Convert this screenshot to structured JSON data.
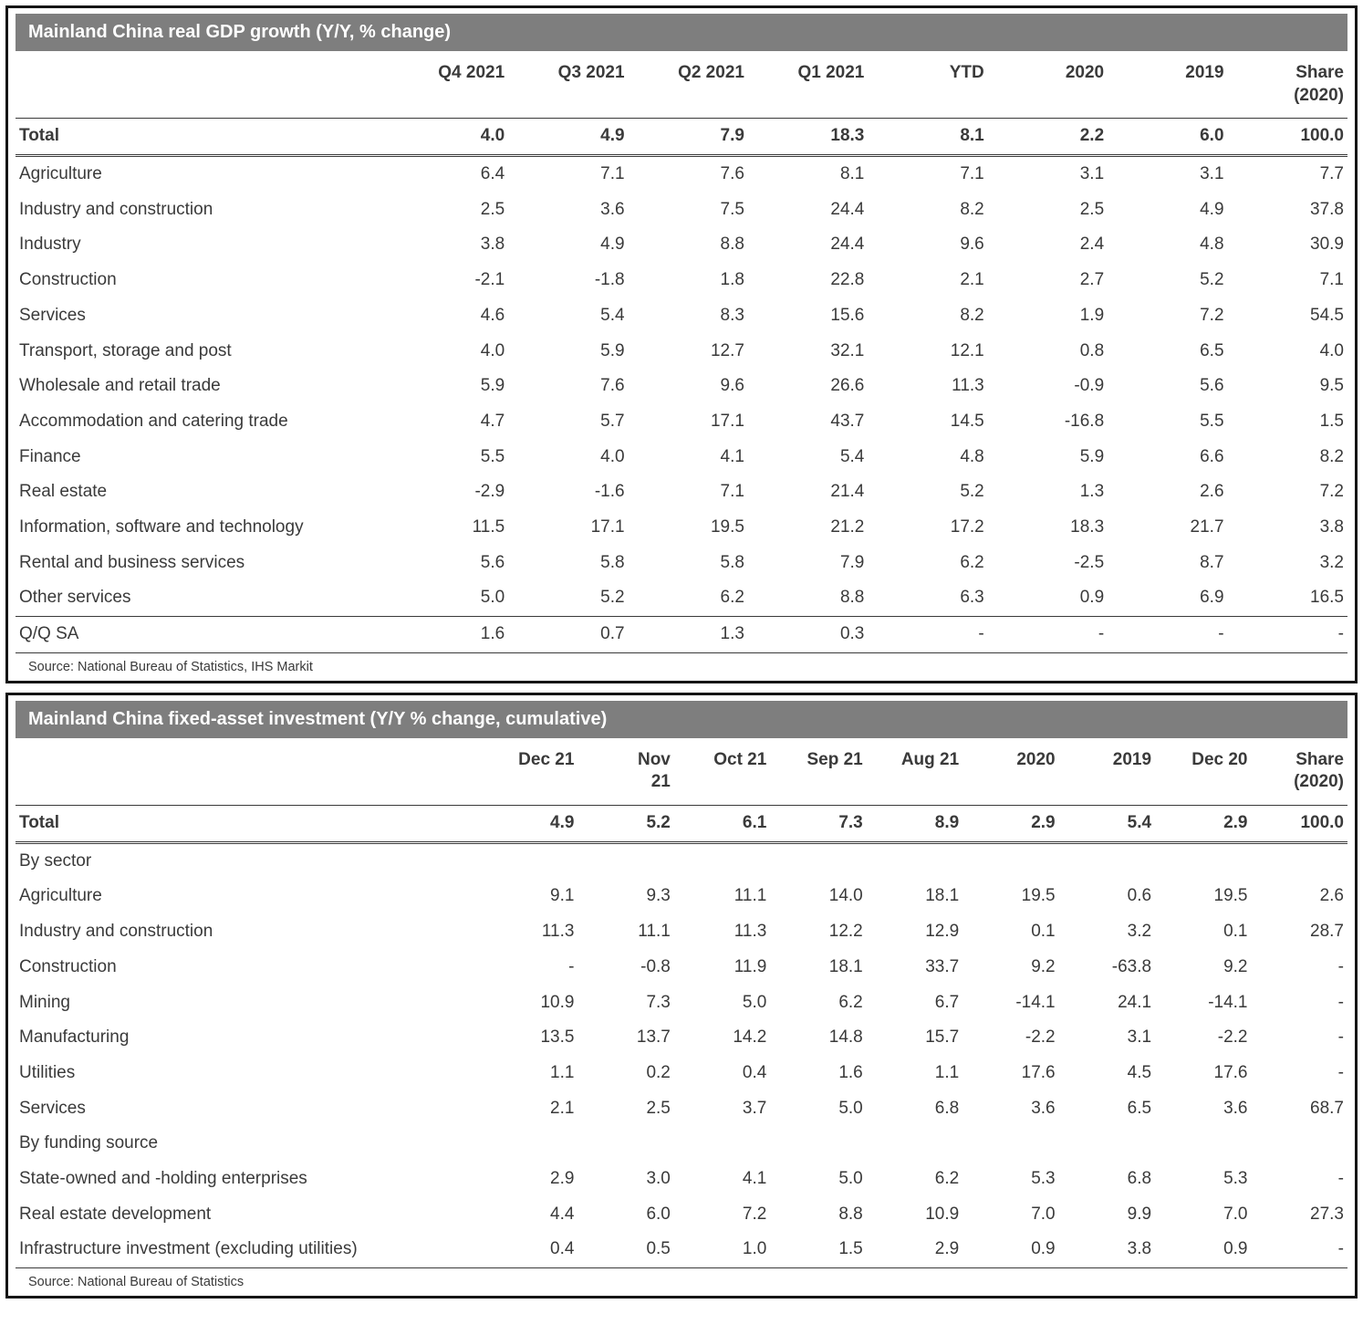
{
  "colors": {
    "title_bar": "#7e7e7e",
    "title_text": "#ffffff",
    "body_text": "#3a3a3a",
    "rule": "#3a3a3a"
  },
  "chart_data": [
    {
      "type": "table",
      "title": "Mainland China real GDP growth (Y/Y, % change)",
      "source": "Source: National Bureau of Statistics, IHS Markit",
      "dash_align": "left",
      "columns": [
        "Q4 2021",
        "Q3 2021",
        "Q2 2021",
        "Q1 2021",
        "YTD",
        "2020",
        "2019",
        "Share\n(2020)"
      ],
      "rows": [
        {
          "label": "Total",
          "indent": 0,
          "total": true,
          "values": [
            "4.0",
            "4.9",
            "7.9",
            "18.3",
            "8.1",
            "2.2",
            "6.0",
            "100.0"
          ]
        },
        {
          "label": "Agriculture",
          "indent": 1,
          "values": [
            "6.4",
            "7.1",
            "7.6",
            "8.1",
            "7.1",
            "3.1",
            "3.1",
            "7.7"
          ]
        },
        {
          "label": "Industry and construction",
          "indent": 1,
          "values": [
            "2.5",
            "3.6",
            "7.5",
            "24.4",
            "8.2",
            "2.5",
            "4.9",
            "37.8"
          ]
        },
        {
          "label": "Industry",
          "indent": 2,
          "values": [
            "3.8",
            "4.9",
            "8.8",
            "24.4",
            "9.6",
            "2.4",
            "4.8",
            "30.9"
          ]
        },
        {
          "label": "Construction",
          "indent": 2,
          "values": [
            "-2.1",
            "-1.8",
            "1.8",
            "22.8",
            "2.1",
            "2.7",
            "5.2",
            "7.1"
          ]
        },
        {
          "label": "Services",
          "indent": 1,
          "values": [
            "4.6",
            "5.4",
            "8.3",
            "15.6",
            "8.2",
            "1.9",
            "7.2",
            "54.5"
          ]
        },
        {
          "label": "Transport, storage and post",
          "indent": 2,
          "values": [
            "4.0",
            "5.9",
            "12.7",
            "32.1",
            "12.1",
            "0.8",
            "6.5",
            "4.0"
          ]
        },
        {
          "label": "Wholesale and retail trade",
          "indent": 2,
          "values": [
            "5.9",
            "7.6",
            "9.6",
            "26.6",
            "11.3",
            "-0.9",
            "5.6",
            "9.5"
          ]
        },
        {
          "label": "Accommodation and catering trade",
          "indent": 2,
          "values": [
            "4.7",
            "5.7",
            "17.1",
            "43.7",
            "14.5",
            "-16.8",
            "5.5",
            "1.5"
          ]
        },
        {
          "label": "Finance",
          "indent": 2,
          "values": [
            "5.5",
            "4.0",
            "4.1",
            "5.4",
            "4.8",
            "5.9",
            "6.6",
            "8.2"
          ]
        },
        {
          "label": "Real estate",
          "indent": 2,
          "values": [
            "-2.9",
            "-1.6",
            "7.1",
            "21.4",
            "5.2",
            "1.3",
            "2.6",
            "7.2"
          ]
        },
        {
          "label": "Information, software and technology",
          "indent": 2,
          "values": [
            "11.5",
            "17.1",
            "19.5",
            "21.2",
            "17.2",
            "18.3",
            "21.7",
            "3.8"
          ]
        },
        {
          "label": "Rental and business services",
          "indent": 2,
          "values": [
            "5.6",
            "5.8",
            "5.8",
            "7.9",
            "6.2",
            "-2.5",
            "8.7",
            "3.2"
          ]
        },
        {
          "label": "Other services",
          "indent": 2,
          "values": [
            "5.0",
            "5.2",
            "6.2",
            "8.8",
            "6.3",
            "0.9",
            "6.9",
            "16.5"
          ]
        },
        {
          "label": "Q/Q SA",
          "indent": 0,
          "rule_above": true,
          "values": [
            "1.6",
            "0.7",
            "1.3",
            "0.3",
            "-",
            "-",
            "-",
            "-"
          ]
        }
      ]
    },
    {
      "type": "table",
      "title": "Mainland China fixed-asset investment (Y/Y % change, cumulative)",
      "source": "Source: National Bureau of Statistics",
      "dash_align": "right",
      "columns": [
        "Dec 21",
        "Nov\n21",
        "Oct 21",
        "Sep 21",
        "Aug 21",
        "2020",
        "2019",
        "Dec 20",
        "Share\n(2020)"
      ],
      "rows": [
        {
          "label": "Total",
          "indent": 0,
          "total": true,
          "values": [
            "4.9",
            "5.2",
            "6.1",
            "7.3",
            "8.9",
            "2.9",
            "5.4",
            "2.9",
            "100.0"
          ]
        },
        {
          "label": "By sector",
          "indent": 0,
          "section": true
        },
        {
          "label": "Agriculture",
          "indent": 1,
          "values": [
            "9.1",
            "9.3",
            "11.1",
            "14.0",
            "18.1",
            "19.5",
            "0.6",
            "19.5",
            "2.6"
          ]
        },
        {
          "label": "Industry and construction",
          "indent": 1,
          "values": [
            "11.3",
            "11.1",
            "11.3",
            "12.2",
            "12.9",
            "0.1",
            "3.2",
            "0.1",
            "28.7"
          ]
        },
        {
          "label": "Construction",
          "indent": 1,
          "values": [
            "-",
            "-0.8",
            "11.9",
            "18.1",
            "33.7",
            "9.2",
            "-63.8",
            "9.2",
            "-"
          ]
        },
        {
          "label": "Mining",
          "indent": 1,
          "values": [
            "10.9",
            "7.3",
            "5.0",
            "6.2",
            "6.7",
            "-14.1",
            "24.1",
            "-14.1",
            "-"
          ]
        },
        {
          "label": "Manufacturing",
          "indent": 1,
          "values": [
            "13.5",
            "13.7",
            "14.2",
            "14.8",
            "15.7",
            "-2.2",
            "3.1",
            "-2.2",
            "-"
          ]
        },
        {
          "label": "Utilities",
          "indent": 1,
          "values": [
            "1.1",
            "0.2",
            "0.4",
            "1.6",
            "1.1",
            "17.6",
            "4.5",
            "17.6",
            "-"
          ]
        },
        {
          "label": "Services",
          "indent": 1,
          "values": [
            "2.1",
            "2.5",
            "3.7",
            "5.0",
            "6.8",
            "3.6",
            "6.5",
            "3.6",
            "68.7"
          ]
        },
        {
          "label": "By funding source",
          "indent": 0,
          "section": true
        },
        {
          "label": "State-owned and -holding enterprises",
          "indent": 1,
          "values": [
            "2.9",
            "3.0",
            "4.1",
            "5.0",
            "6.2",
            "5.3",
            "6.8",
            "5.3",
            "-"
          ]
        },
        {
          "label": "Real estate development",
          "indent": 0,
          "values": [
            "4.4",
            "6.0",
            "7.2",
            "8.8",
            "10.9",
            "7.0",
            "9.9",
            "7.0",
            "27.3"
          ]
        },
        {
          "label": "Infrastructure investment (excluding utilities)",
          "indent": 0,
          "values": [
            "0.4",
            "0.5",
            "1.0",
            "1.5",
            "2.9",
            "0.9",
            "3.8",
            "0.9",
            "-"
          ]
        }
      ]
    }
  ]
}
